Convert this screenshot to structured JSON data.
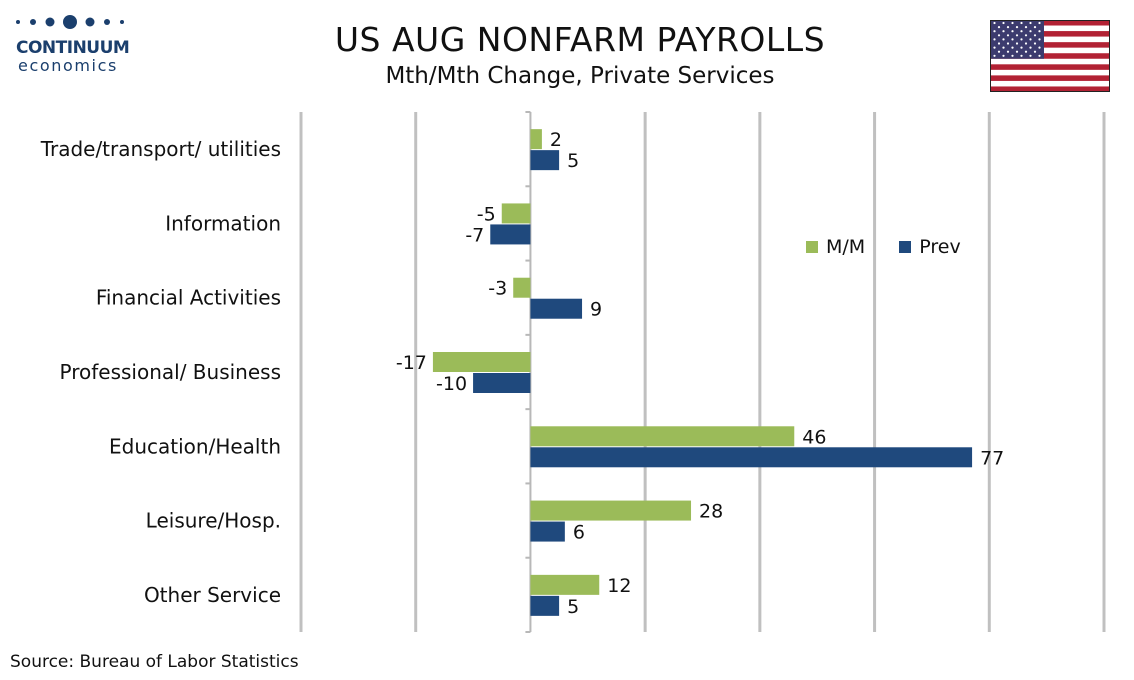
{
  "logo": {
    "name": "CONTINUUM",
    "sub": "economics",
    "color": "#1b3f6d"
  },
  "flag": {
    "icon": "us-flag"
  },
  "chart_data": {
    "type": "bar",
    "orientation": "horizontal",
    "title": "US AUG NONFARM PAYROLLS",
    "subtitle": "Mth/Mth Change, Private Services",
    "categories": [
      "Trade/transport/ utilities",
      "Information",
      "Financial Activities",
      "Professional/ Business",
      "Education/Health",
      "Leisure/Hosp.",
      "Other Service"
    ],
    "series": [
      {
        "name": "M/M",
        "color": "#9bbb59",
        "values": [
          2,
          -5,
          -3,
          -17,
          46,
          28,
          12
        ]
      },
      {
        "name": "Prev",
        "color": "#1f497d",
        "values": [
          5,
          -7,
          9,
          -10,
          77,
          6,
          5
        ]
      }
    ],
    "xlim": [
      -40,
      100
    ],
    "grid": true,
    "legend_position": "right",
    "source": "Source: Bureau of Labor Statistics"
  }
}
